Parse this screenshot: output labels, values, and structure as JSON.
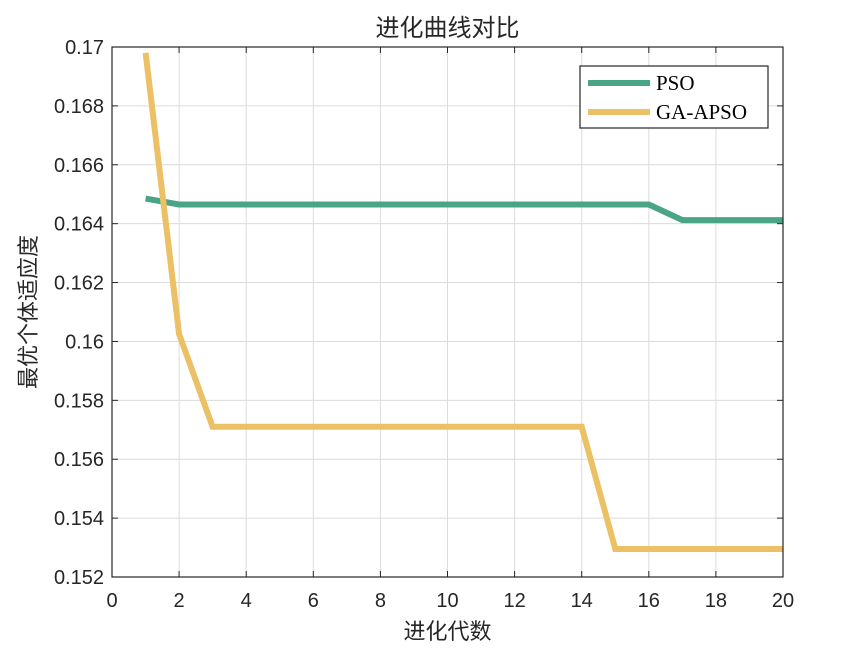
{
  "chart_data": {
    "type": "line",
    "title": "进化曲线对比",
    "xlabel": "进化代数",
    "ylabel": "最优个体适应度",
    "xlim": [
      0,
      20
    ],
    "ylim": [
      0.152,
      0.17
    ],
    "xticks": [
      0,
      2,
      4,
      6,
      8,
      10,
      12,
      14,
      16,
      18,
      20
    ],
    "yticks": [
      0.152,
      0.154,
      0.156,
      0.158,
      0.16,
      0.162,
      0.164,
      0.166,
      0.168,
      0.17
    ],
    "grid": true,
    "legend_position": "top-right",
    "series": [
      {
        "name": "PSO",
        "color": "#4aa587",
        "x": [
          1,
          2,
          3,
          4,
          5,
          6,
          7,
          8,
          9,
          10,
          11,
          12,
          13,
          14,
          15,
          16,
          17,
          18,
          19,
          20
        ],
        "y": [
          0.16485,
          0.16465,
          0.16465,
          0.16465,
          0.16465,
          0.16465,
          0.16465,
          0.16465,
          0.16465,
          0.16465,
          0.16465,
          0.16465,
          0.16465,
          0.16465,
          0.16465,
          0.16465,
          0.16412,
          0.16412,
          0.16412,
          0.16412
        ]
      },
      {
        "name": "GA-APSO",
        "color": "#ecc064",
        "x": [
          1,
          2,
          3,
          4,
          5,
          6,
          7,
          8,
          9,
          10,
          11,
          12,
          13,
          14,
          15,
          16,
          17,
          18,
          19,
          20
        ],
        "y": [
          0.1698,
          0.16025,
          0.1571,
          0.1571,
          0.1571,
          0.1571,
          0.1571,
          0.1571,
          0.1571,
          0.1571,
          0.1571,
          0.1571,
          0.1571,
          0.1571,
          0.15295,
          0.15295,
          0.15295,
          0.15295,
          0.15295,
          0.15295
        ]
      }
    ]
  }
}
